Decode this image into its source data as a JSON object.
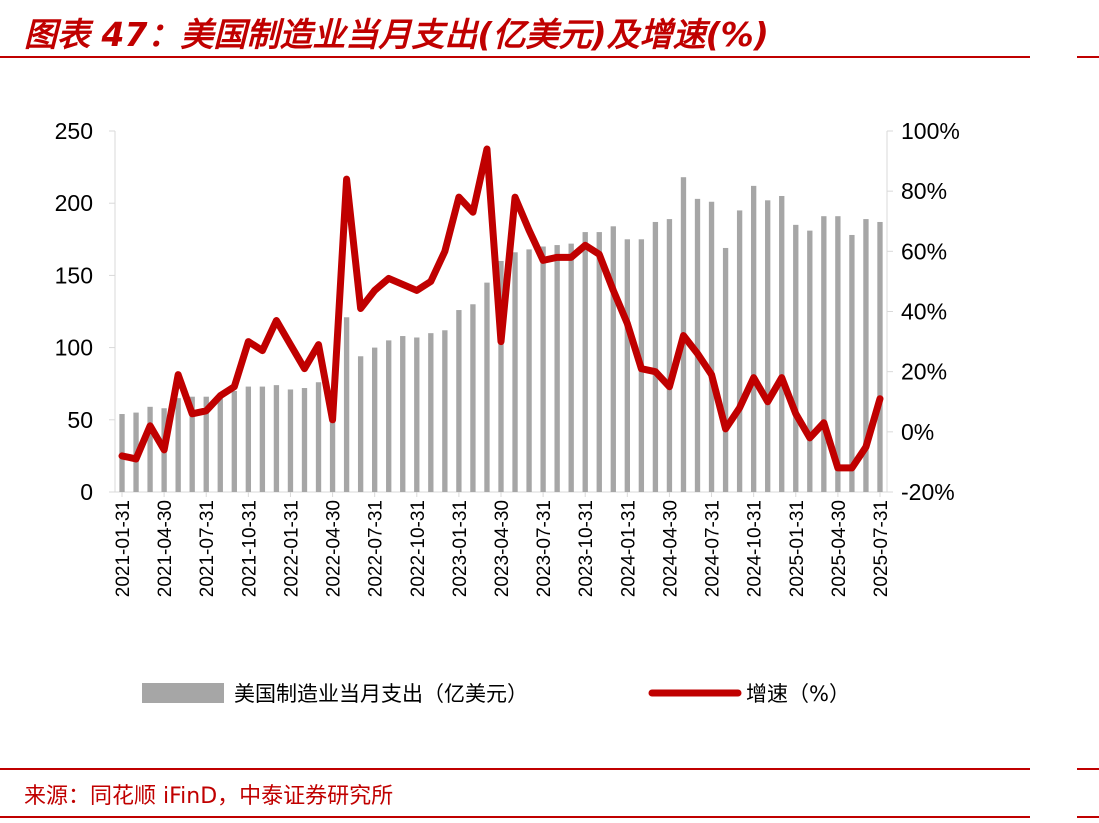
{
  "header": {
    "title": "图表 47：美国制造业当月支出(亿美元)及增速(%)"
  },
  "footer": {
    "source": "来源：同花顺 iFinD，中泰证券研究所"
  },
  "chart_data": {
    "type": "bar+line",
    "title": "图表 47：美国制造业当月支出(亿美元)及增速(%)",
    "x_tick_labels": [
      "2021-01-31",
      "2021-04-30",
      "2021-07-31",
      "2021-10-31",
      "2022-01-31",
      "2022-04-30",
      "2022-07-31",
      "2022-10-31",
      "2023-01-31",
      "2023-04-30",
      "2023-07-31",
      "2023-10-31",
      "2024-01-31",
      "2024-04-30",
      "2024-07-31",
      "2024-10-31",
      "2025-01-31",
      "2025-04-30",
      "2025-07-31"
    ],
    "y_left": {
      "ylim": [
        0,
        250
      ],
      "ticks": [
        "0",
        "50",
        "100",
        "150",
        "200",
        "250"
      ]
    },
    "y_right": {
      "ylim": [
        -20,
        100
      ],
      "ticks": [
        "-20%",
        "0%",
        "20%",
        "40%",
        "60%",
        "80%",
        "100%"
      ]
    },
    "legend": {
      "position": "bottom",
      "entries": [
        "美国制造业当月支出（亿美元）",
        "增速（%）"
      ]
    },
    "colors": {
      "bar": "#a6a6a6",
      "line": "#c00000",
      "accent": "#c00000"
    },
    "series": [
      {
        "name": "美国制造业当月支出（亿美元）",
        "type": "bar",
        "axis": "left",
        "values": [
          54,
          55,
          59,
          58,
          65,
          66,
          66,
          68,
          70,
          73,
          73,
          74,
          71,
          72,
          76,
          66,
          121,
          94,
          100,
          105,
          108,
          107,
          110,
          112,
          126,
          130,
          145,
          160,
          166,
          168,
          170,
          171,
          172,
          180,
          180,
          184,
          175,
          175,
          187,
          189,
          218,
          203,
          201,
          169,
          195,
          212,
          202,
          205,
          185,
          181,
          191,
          191,
          178,
          189,
          187
        ]
      },
      {
        "name": "增速（%）",
        "type": "line",
        "axis": "right",
        "values": [
          -8,
          -9,
          2,
          -6,
          19,
          6,
          7,
          12,
          15,
          30,
          27,
          37,
          29,
          21,
          29,
          4,
          84,
          41,
          47,
          51,
          49,
          47,
          50,
          60,
          78,
          73,
          94,
          30,
          78,
          67,
          57,
          58,
          58,
          62,
          59,
          47,
          36,
          21,
          20,
          15,
          32,
          26,
          19,
          1,
          8,
          18,
          10,
          18,
          6,
          -2,
          3,
          -12,
          -12,
          -5,
          11
        ]
      }
    ]
  }
}
